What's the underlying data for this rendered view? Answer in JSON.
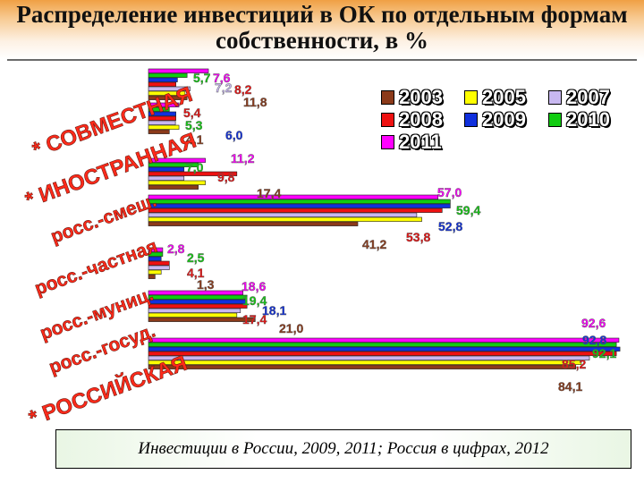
{
  "title": "Распределение инвестиций в ОК по отдельным формам собственности, в %",
  "source": "Инвестиции в России, 2009, 2011; Россия в цифрах, 2012",
  "chart_data": {
    "type": "bar",
    "orientation": "horizontal",
    "categories": [
      "СОВМЕСТНАЯ",
      "ИНОСТРАННАЯ",
      "росс.-смеш.",
      "росс.-частная",
      "росс.-муниц.",
      "росс.-госуд.",
      "РОССИЙСКАЯ"
    ],
    "category_marks": [
      "*",
      "*",
      "",
      "",
      "",
      "",
      "*"
    ],
    "series": [
      {
        "name": "2003",
        "color": "#8b3a1a",
        "values": [
          7.6,
          4.1,
          9.8,
          41.2,
          1.3,
          21.0,
          84.1
        ]
      },
      {
        "name": "2005",
        "color": "#ffff00",
        "values": [
          7.2,
          6.0,
          11.2,
          53.8,
          2.5,
          17.4,
          85.2
        ]
      },
      {
        "name": "2007",
        "color": "#c8b8f0",
        "values": [
          8.2,
          5.3,
          7.0,
          52.8,
          4.1,
          18.1,
          86.8
        ]
      },
      {
        "name": "2008",
        "color": "#ee1111",
        "values": [
          5.4,
          5.4,
          17.4,
          57.8,
          4.1,
          19.4,
          92.1
        ]
      },
      {
        "name": "2009",
        "color": "#1030dd",
        "values": [
          5.7,
          5.4,
          7.0,
          59.4,
          2.5,
          19.4,
          92.8
        ]
      },
      {
        "name": "2010",
        "color": "#11cc11",
        "values": [
          7.6,
          4.1,
          9.8,
          59.4,
          2.8,
          19.4,
          92.1
        ]
      },
      {
        "name": "2011",
        "color": "#ff00ff",
        "values": [
          11.8,
          6.0,
          11.2,
          57.0,
          2.8,
          18.6,
          92.6
        ]
      }
    ],
    "data_labels": [
      [
        "5,7",
        "7,6",
        "7,2",
        "8,2",
        "11,8"
      ],
      [
        "5,4",
        "5,3",
        "6,0",
        "4,1"
      ],
      [
        "7,0",
        "11,2",
        "9,8",
        "17,4"
      ],
      [
        "57,0",
        "59,4",
        "52,8",
        "53,8",
        "41,2"
      ],
      [
        "2,8",
        "2,5",
        "4,1",
        "1,3"
      ],
      [
        "18,6",
        "19,4",
        "18,1",
        "17,4",
        "21,0"
      ],
      [
        "92,6",
        "92,8",
        "92,1",
        "85,2",
        "84,1"
      ]
    ],
    "legend": [
      {
        "label": "2003",
        "color": "#8b3a1a"
      },
      {
        "label": "2005",
        "color": "#ffff00"
      },
      {
        "label": "2007",
        "color": "#c8b8f0"
      },
      {
        "label": "2008",
        "color": "#ee1111"
      },
      {
        "label": "2009",
        "color": "#1030dd"
      },
      {
        "label": "2010",
        "color": "#11cc11"
      },
      {
        "label": "2011",
        "color": "#ff00ff"
      }
    ],
    "legend_position": "top-right",
    "grid": false
  }
}
